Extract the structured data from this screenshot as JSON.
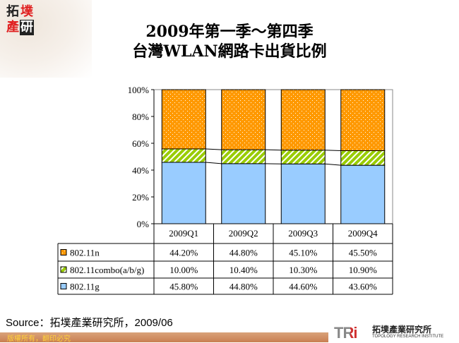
{
  "logo": {
    "chars": [
      "拓",
      "墣",
      "產",
      "研"
    ]
  },
  "title": {
    "line1": "2009年第一季～第四季",
    "line2": "台灣WLAN網路卡出貨比例"
  },
  "chart_data": {
    "type": "bar",
    "stacked": true,
    "percent": true,
    "categories": [
      "2009Q1",
      "2009Q2",
      "2009Q3",
      "2009Q4"
    ],
    "ylim": [
      0,
      100
    ],
    "yticks": [
      "0%",
      "20%",
      "40%",
      "60%",
      "80%",
      "100%"
    ],
    "series": [
      {
        "name": "802.11n",
        "values": [
          44.2,
          44.8,
          45.1,
          45.5
        ],
        "labels": [
          "44.20%",
          "44.80%",
          "45.10%",
          "45.50%"
        ],
        "color": "#ff9900",
        "pattern": "dots"
      },
      {
        "name": "802.11combo(a/b/g)",
        "values": [
          10.0,
          10.4,
          10.3,
          10.9
        ],
        "labels": [
          "10.00%",
          "10.40%",
          "10.30%",
          "10.90%"
        ],
        "color": "#99cc00",
        "pattern": "diagonal-stripes"
      },
      {
        "name": "802.11g",
        "values": [
          45.8,
          44.8,
          44.6,
          43.6
        ],
        "labels": [
          "45.80%",
          "44.80%",
          "44.60%",
          "43.60%"
        ],
        "color": "#99ccff",
        "pattern": "solid"
      }
    ],
    "legend": "data-table"
  },
  "source": "Source：拓墣產業研究所，2009/06",
  "footer": {
    "copyright": "版權所有，翻印必究",
    "brand_mark": "TRi",
    "brand_zh": "拓墣產業研究所",
    "brand_en": "TOPOLOGY RESEARCH INSTITUTE"
  }
}
